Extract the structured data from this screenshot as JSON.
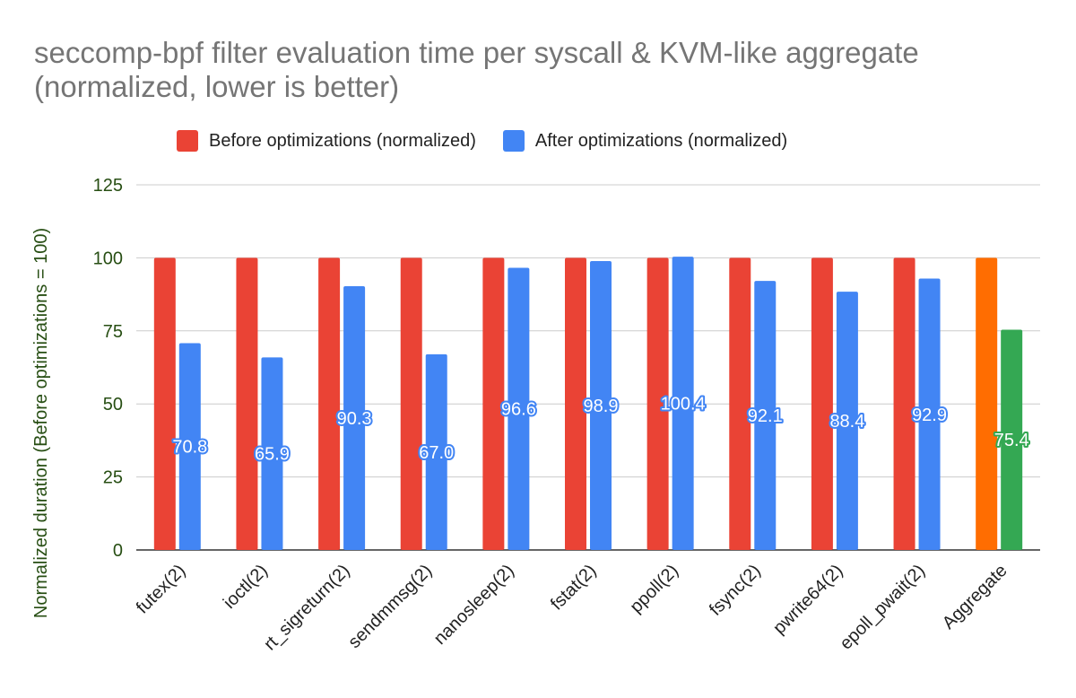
{
  "chart_data": {
    "type": "bar",
    "title": "seccomp-bpf filter evaluation time per syscall & KVM-like aggregate (normalized, lower is better)",
    "xlabel": "",
    "ylabel": "Normalized duration (Before optimizations = 100)",
    "ylim": [
      0,
      125
    ],
    "yticks": [
      0,
      25,
      50,
      75,
      100,
      125
    ],
    "grid": true,
    "legend_position": "top",
    "categories": [
      "futex(2)",
      "ioctl(2)",
      "rt_sigreturn(2)",
      "sendmmsg(2)",
      "nanosleep(2)",
      "fstat(2)",
      "ppoll(2)",
      "fsync(2)",
      "pwrite64(2)",
      "epoll_pwait(2)",
      "Aggregate"
    ],
    "series": [
      {
        "name": "Before optimizations (normalized)",
        "color": "#ea4335",
        "values": [
          100,
          100,
          100,
          100,
          100,
          100,
          100,
          100,
          100,
          100,
          100
        ],
        "point_colors": [
          "#ea4335",
          "#ea4335",
          "#ea4335",
          "#ea4335",
          "#ea4335",
          "#ea4335",
          "#ea4335",
          "#ea4335",
          "#ea4335",
          "#ea4335",
          "#ff6d01"
        ],
        "labels": [
          "",
          "",
          "",
          "",
          "",
          "",
          "",
          "",
          "",
          "",
          ""
        ]
      },
      {
        "name": "After optimizations (normalized)",
        "color": "#4285f4",
        "values": [
          70.8,
          65.9,
          90.3,
          67.0,
          96.6,
          98.9,
          100.4,
          92.1,
          88.4,
          92.9,
          75.4
        ],
        "point_colors": [
          "#4285f4",
          "#4285f4",
          "#4285f4",
          "#4285f4",
          "#4285f4",
          "#4285f4",
          "#4285f4",
          "#4285f4",
          "#4285f4",
          "#4285f4",
          "#34a853"
        ],
        "labels": [
          "70.8",
          "65.9",
          "90.3",
          "67.0",
          "96.6",
          "98.9",
          "100.4",
          "92.1",
          "88.4",
          "92.9",
          "75.4"
        ]
      }
    ],
    "axis_color": "#274e13",
    "title_color": "#757575"
  }
}
